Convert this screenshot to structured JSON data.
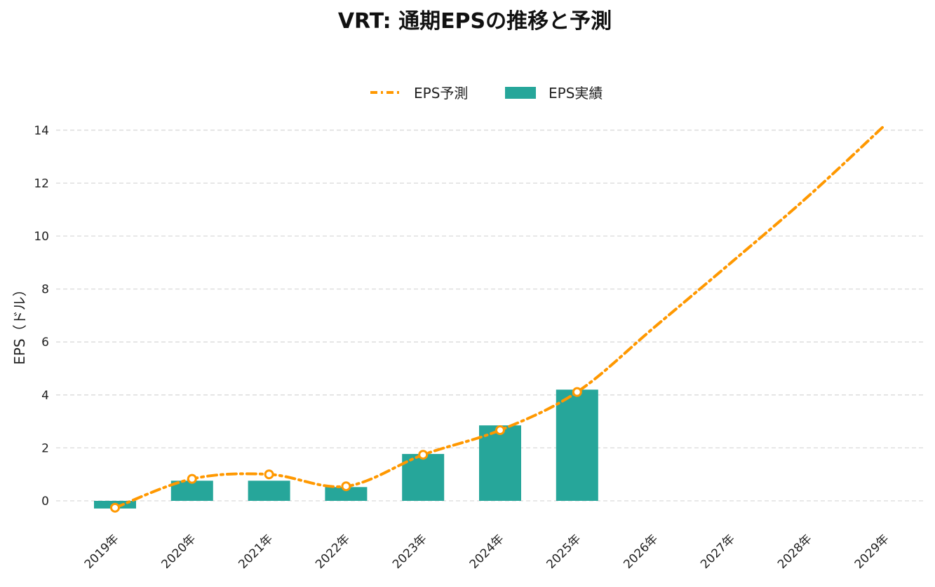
{
  "chart_data": {
    "type": "bar",
    "title": "VRT: 通期EPSの推移と予測",
    "ylabel": "EPS（ドル）",
    "xlabel": "",
    "categories": [
      "2019年",
      "2020年",
      "2021年",
      "2022年",
      "2023年",
      "2024年",
      "2025年",
      "2026年",
      "2027年",
      "2028年",
      "2029年"
    ],
    "ylim": [
      -1.2,
      15
    ],
    "yticks": [
      0,
      2,
      4,
      6,
      8,
      10,
      12,
      14
    ],
    "grid": true,
    "legend_position": "top-center",
    "series": [
      {
        "name": "EPS実績",
        "kind": "bar",
        "color": "#26a69a",
        "values": [
          -0.29,
          0.76,
          0.76,
          0.52,
          1.77,
          2.85,
          4.2,
          null,
          null,
          null,
          null
        ]
      },
      {
        "name": "EPS予測",
        "kind": "line",
        "style": "dash-dot",
        "color": "#ff9800",
        "values": [
          -0.26,
          0.83,
          1.0,
          0.55,
          1.74,
          2.67,
          4.11,
          6.55,
          9.0,
          11.5,
          14.2
        ],
        "markers": [
          true,
          true,
          true,
          true,
          true,
          true,
          true,
          false,
          false,
          false,
          false
        ]
      }
    ]
  }
}
